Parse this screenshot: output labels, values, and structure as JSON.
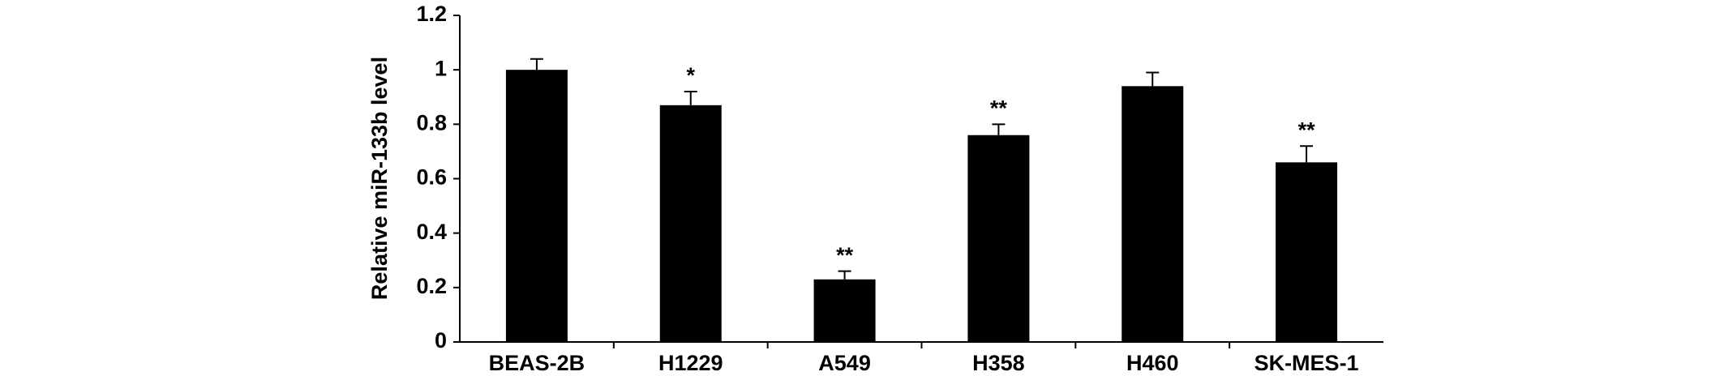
{
  "chart_data": {
    "type": "bar",
    "y_label": "Relative miR-133b level",
    "categories": [
      "BEAS-2B",
      "H1229",
      "A549",
      "H358",
      "H460",
      "SK-MES-1"
    ],
    "values": [
      1.0,
      0.87,
      0.23,
      0.76,
      0.94,
      0.66
    ],
    "errors": [
      0.04,
      0.05,
      0.03,
      0.04,
      0.05,
      0.06
    ],
    "annotations": [
      null,
      "*",
      "**",
      "**",
      null,
      "**"
    ],
    "color": "#000000",
    "ylim": [
      0,
      1.2
    ],
    "yticks": [
      0,
      0.2,
      0.4,
      0.6,
      0.8,
      1,
      1.2
    ],
    "grid": false
  }
}
